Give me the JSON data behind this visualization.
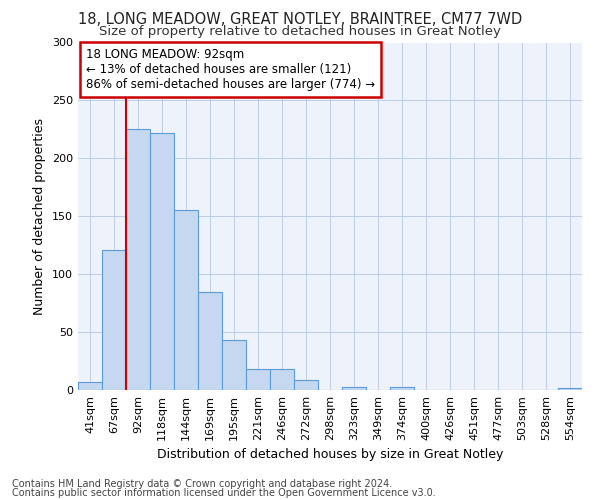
{
  "title1": "18, LONG MEADOW, GREAT NOTLEY, BRAINTREE, CM77 7WD",
  "title2": "Size of property relative to detached houses in Great Notley",
  "xlabel": "Distribution of detached houses by size in Great Notley",
  "ylabel": "Number of detached properties",
  "footer1": "Contains HM Land Registry data © Crown copyright and database right 2024.",
  "footer2": "Contains public sector information licensed under the Open Government Licence v3.0.",
  "annotation_line1": "18 LONG MEADOW: 92sqm",
  "annotation_line2": "← 13% of detached houses are smaller (121)",
  "annotation_line3": "86% of semi-detached houses are larger (774) →",
  "bar_labels": [
    "41sqm",
    "67sqm",
    "92sqm",
    "118sqm",
    "144sqm",
    "169sqm",
    "195sqm",
    "221sqm",
    "246sqm",
    "272sqm",
    "298sqm",
    "323sqm",
    "349sqm",
    "374sqm",
    "400sqm",
    "426sqm",
    "451sqm",
    "477sqm",
    "503sqm",
    "528sqm",
    "554sqm"
  ],
  "bar_values": [
    7,
    121,
    225,
    222,
    155,
    85,
    43,
    18,
    18,
    9,
    0,
    3,
    0,
    3,
    0,
    0,
    0,
    0,
    0,
    0,
    2
  ],
  "bar_color": "#c5d8f0",
  "bar_edge_color": "#5b9bd5",
  "vline_color": "#cc0000",
  "vline_bar_index": 2,
  "ylim": [
    0,
    300
  ],
  "yticks": [
    0,
    50,
    100,
    150,
    200,
    250,
    300
  ],
  "bg_color": "#eef2fb",
  "grid_color": "#b8c8e0",
  "annotation_box_color": "#cc0000",
  "title_fontsize": 10.5,
  "subtitle_fontsize": 9.5,
  "axis_label_fontsize": 9,
  "tick_fontsize": 8,
  "annotation_fontsize": 8.5,
  "footer_fontsize": 7
}
